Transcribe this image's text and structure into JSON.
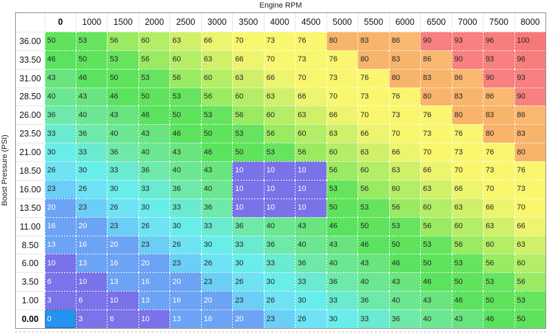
{
  "chart_data": {
    "type": "heatmap",
    "xlabel": "Engine RPM",
    "ylabel": "Boost Pressure (PSI)",
    "columns": [
      "0",
      "1000",
      "1500",
      "2000",
      "2500",
      "3000",
      "3500",
      "4000",
      "4500",
      "5000",
      "5500",
      "6000",
      "6500",
      "7000",
      "7500",
      "8000"
    ],
    "rows": [
      {
        "label": "36.00",
        "values": [
          50,
          53,
          56,
          60,
          63,
          66,
          70,
          73,
          76,
          80,
          83,
          86,
          90,
          93,
          96,
          100
        ]
      },
      {
        "label": "33.50",
        "values": [
          46,
          50,
          53,
          56,
          60,
          63,
          66,
          70,
          73,
          76,
          80,
          83,
          86,
          90,
          93,
          96
        ]
      },
      {
        "label": "31.00",
        "values": [
          43,
          46,
          50,
          53,
          56,
          60,
          63,
          66,
          70,
          73,
          76,
          80,
          83,
          86,
          90,
          93
        ]
      },
      {
        "label": "28.50",
        "values": [
          40,
          43,
          46,
          50,
          53,
          56,
          60,
          63,
          66,
          70,
          73,
          76,
          80,
          83,
          86,
          90
        ]
      },
      {
        "label": "26.00",
        "values": [
          36,
          40,
          43,
          46,
          50,
          53,
          56,
          60,
          63,
          66,
          70,
          73,
          76,
          80,
          83,
          86
        ]
      },
      {
        "label": "23.50",
        "values": [
          33,
          36,
          40,
          43,
          46,
          50,
          53,
          56,
          60,
          63,
          66,
          70,
          73,
          76,
          80,
          83
        ]
      },
      {
        "label": "21.00",
        "values": [
          30,
          33,
          36,
          40,
          43,
          46,
          50,
          53,
          56,
          60,
          63,
          66,
          70,
          73,
          76,
          80
        ]
      },
      {
        "label": "18.50",
        "values": [
          26,
          30,
          33,
          36,
          40,
          43,
          10,
          10,
          10,
          56,
          60,
          63,
          66,
          70,
          73,
          76
        ]
      },
      {
        "label": "16.00",
        "values": [
          23,
          26,
          30,
          33,
          36,
          40,
          10,
          10,
          10,
          53,
          56,
          60,
          63,
          66,
          70,
          73
        ]
      },
      {
        "label": "13.50",
        "values": [
          20,
          23,
          26,
          30,
          33,
          36,
          10,
          10,
          10,
          50,
          53,
          56,
          60,
          63,
          66,
          70
        ]
      },
      {
        "label": "11.00",
        "values": [
          16,
          20,
          23,
          26,
          30,
          33,
          36,
          40,
          43,
          46,
          50,
          53,
          56,
          60,
          63,
          66
        ]
      },
      {
        "label": "8.50",
        "values": [
          13,
          16,
          20,
          23,
          26,
          30,
          33,
          36,
          40,
          43,
          46,
          50,
          53,
          56,
          60,
          63
        ]
      },
      {
        "label": "6.00",
        "values": [
          10,
          13,
          16,
          20,
          23,
          26,
          30,
          33,
          36,
          40,
          43,
          46,
          50,
          53,
          56,
          60
        ]
      },
      {
        "label": "3.50",
        "values": [
          6,
          10,
          13,
          16,
          20,
          23,
          26,
          30,
          33,
          36,
          40,
          43,
          46,
          50,
          53,
          56
        ]
      },
      {
        "label": "1.00",
        "values": [
          3,
          6,
          10,
          13,
          16,
          20,
          23,
          26,
          30,
          33,
          36,
          40,
          43,
          46,
          50,
          53
        ]
      },
      {
        "label": "0.00",
        "values": [
          0,
          3,
          6,
          10,
          13,
          16,
          20,
          23,
          26,
          30,
          33,
          36,
          40,
          43,
          46,
          50
        ]
      }
    ],
    "selected": {
      "row_label": "0.00",
      "column_label": "0",
      "row_index": 15,
      "col_index": 0,
      "value": 0
    }
  },
  "value_colors": {
    "3": "#7b73e9",
    "6": "#7b73e9",
    "10": "#7a72e8",
    "13": "#6ca3f4",
    "16": "#6ca3f4",
    "20": "#6ca3f4",
    "23": "#6bcef6",
    "26": "#6fe2f3",
    "30": "#69edeb",
    "33": "#6aead0",
    "36": "#6ee9aa",
    "40": "#6ce791",
    "43": "#69e47f",
    "46": "#5be360",
    "50": "#5fe35c",
    "53": "#66e45f",
    "56": "#9aeb62",
    "60": "#b4ee66",
    "63": "#d0f06a",
    "66": "#edf46e",
    "70": "#f9f76e",
    "73": "#f9f76e",
    "76": "#faf670",
    "80": "#f9b46b",
    "83": "#f9b46b",
    "86": "#fab871",
    "90": "#f88080",
    "93": "#f88080",
    "96": "#f87e7e",
    "100": "#f87878"
  },
  "ui": {
    "selected_cell_bg": "#2493f2",
    "light_text_max_value": 20,
    "text_dark": "#262626",
    "text_light": "#ffffff",
    "grid_line": "#ffffff",
    "outer_border": "#8f8f8f",
    "header_separator": "#e6e6e6",
    "page_bg": "#ffffff"
  }
}
